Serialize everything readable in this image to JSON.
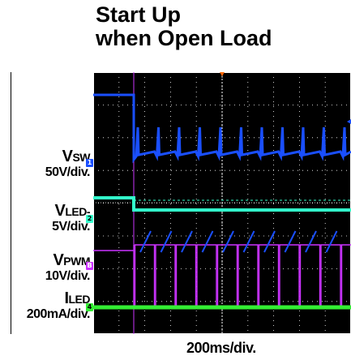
{
  "title_line1": "Start Up",
  "title_line2": "when Open Load",
  "timebase": "200ms/div.",
  "colors": {
    "background": "#ffffff",
    "screen": "#000000",
    "grid": "#ffffff",
    "sw": "#1a4fff",
    "led": "#33ffcc",
    "pwm": "#cc33ff",
    "iled": "#33ee33"
  },
  "channels": [
    {
      "symbol": "V",
      "sub": "SW",
      "scale": "50V/div.",
      "marker": "1",
      "color": "#1a4fff"
    },
    {
      "symbol": "V",
      "sub": "LED-",
      "scale": "5V/div.",
      "marker": "2",
      "color": "#33ffcc"
    },
    {
      "symbol": "V",
      "sub": "PWM",
      "scale": "10V/div.",
      "marker": "B",
      "color": "#cc33ff"
    },
    {
      "symbol": "I",
      "sub": "LED",
      "scale": "200mA/div.",
      "marker": "4",
      "color": "#33ee33"
    }
  ],
  "chart_data": {
    "type": "line",
    "title": "Start Up when Open Load",
    "xlabel": "200ms/div.",
    "series": [
      {
        "name": "VSW",
        "description": "high before start-up, drops at startup then repetitive sawtooth bursts"
      },
      {
        "name": "VLED-",
        "description": "flat then steps lower after start-up"
      },
      {
        "name": "VPWM",
        "description": "rectangular PWM pulses after start-up"
      },
      {
        "name": "ILED",
        "description": "flat near zero"
      }
    ]
  }
}
